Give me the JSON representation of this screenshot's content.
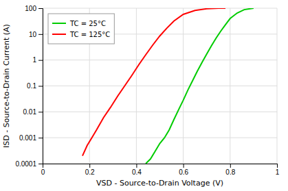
{
  "chart_data": {
    "type": "line",
    "xlabel": "VSD - Source-to-Drain Voltage (V)",
    "ylabel": "ISD - Source-to-Drain Current (A)",
    "log": "y",
    "xlim": [
      0,
      1.0
    ],
    "ylim": [
      0.0001,
      100
    ],
    "xticks": [
      0,
      0.2,
      0.4,
      0.6,
      0.8,
      1
    ],
    "yticks": [
      0.0001,
      0.001,
      0.01,
      0.1,
      1,
      10,
      100
    ],
    "grid": true,
    "legend": "upper left",
    "series": [
      {
        "name": "TC = 25°C",
        "color": "#00cc00",
        "x": [
          0.44,
          0.46,
          0.48,
          0.5,
          0.52,
          0.54,
          0.56,
          0.58,
          0.6,
          0.62,
          0.64,
          0.66,
          0.68,
          0.7,
          0.72,
          0.74,
          0.76,
          0.78,
          0.8,
          0.83,
          0.86,
          0.9
        ],
        "values": [
          0.0001,
          0.00015,
          0.0003,
          0.0006,
          0.001,
          0.002,
          0.005,
          0.012,
          0.028,
          0.07,
          0.16,
          0.37,
          0.8,
          1.7,
          3.5,
          7.0,
          13,
          23,
          40,
          65,
          88,
          100
        ]
      },
      {
        "name": "TC = 125°C",
        "color": "#ff0000",
        "x": [
          0.17,
          0.19,
          0.21,
          0.23,
          0.26,
          0.29,
          0.32,
          0.35,
          0.38,
          0.41,
          0.44,
          0.47,
          0.5,
          0.53,
          0.56,
          0.6,
          0.65,
          0.7,
          0.75,
          0.78
        ],
        "values": [
          0.0002,
          0.0005,
          0.001,
          0.002,
          0.006,
          0.015,
          0.04,
          0.1,
          0.25,
          0.65,
          1.6,
          3.8,
          8.5,
          17,
          32,
          58,
          82,
          95,
          100,
          100
        ]
      }
    ]
  }
}
